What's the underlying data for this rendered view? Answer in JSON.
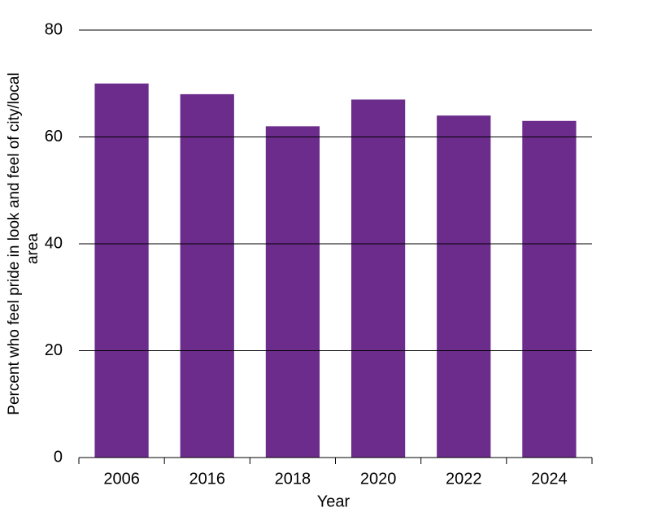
{
  "chart_data": {
    "type": "bar",
    "x_label": "Year",
    "y_label": [
      "Percent who feel pride in look and feel of  city/local",
      "area"
    ],
    "categories": [
      "2006",
      "2016",
      "2018",
      "2020",
      "2022",
      "2024"
    ],
    "values": [
      70,
      68,
      62,
      67,
      64,
      63
    ],
    "color": "#6b2c8c",
    "ylim": [
      0,
      80
    ],
    "yticks": [
      0,
      20,
      40,
      60,
      80
    ],
    "grid": true
  }
}
